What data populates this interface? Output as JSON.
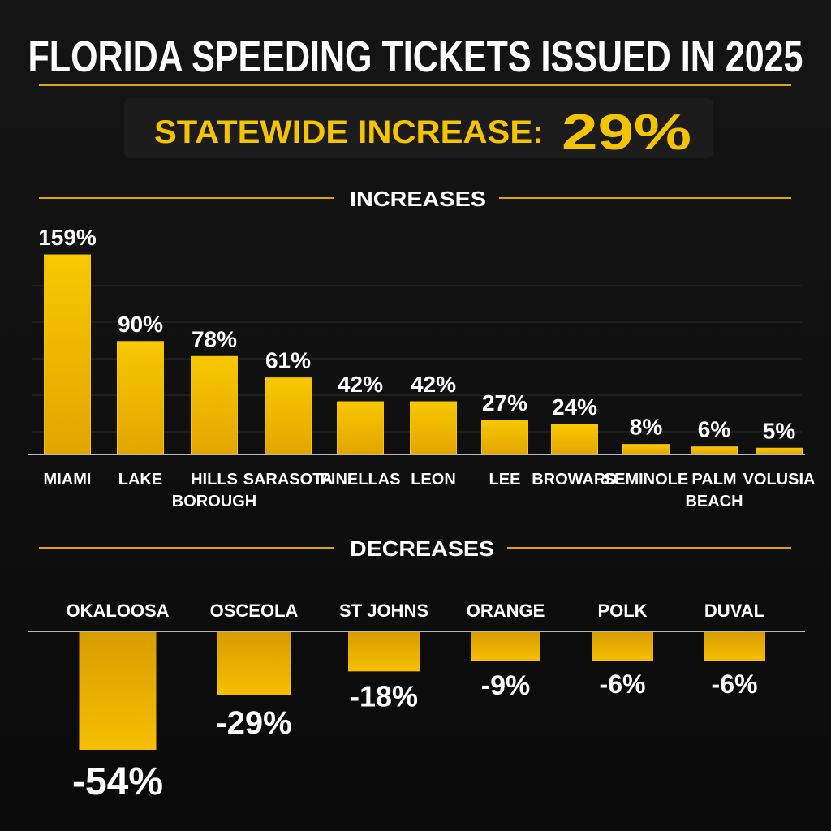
{
  "title": "FLORIDA SPEEDING TICKETS ISSUED IN 2025",
  "statewide": {
    "label": "STATEWIDE INCREASE:",
    "value": "29%"
  },
  "colors": {
    "accent": "#f5c400",
    "bar_top": "#f7c800",
    "bar_bottom": "#e0a200",
    "background": "#0d0d0d",
    "text": "#ffffff"
  },
  "chart_data": [
    {
      "type": "bar",
      "title": "INCREASES",
      "unit": "%",
      "categories": [
        "MIAMI",
        "LAKE",
        "HILLS BOROUGH",
        "SARASOTA",
        "PINELLAS",
        "LEON",
        "LEE",
        "BROWARD",
        "SEMINOLE",
        "PALM BEACH",
        "VOLUSIA"
      ],
      "values": [
        159,
        90,
        78,
        61,
        42,
        42,
        27,
        24,
        8,
        6,
        5
      ],
      "labels": [
        "159%",
        "90%",
        "78%",
        "61%",
        "42%",
        "42%",
        "27%",
        "24%",
        "8%",
        "6%",
        "5%"
      ],
      "ylim": [
        0,
        170
      ],
      "grid": true
    },
    {
      "type": "bar",
      "title": "DECREASES",
      "unit": "%",
      "categories": [
        "OKALOOSA",
        "OSCEOLA",
        "ST JOHNS",
        "ORANGE",
        "POLK",
        "DUVAL"
      ],
      "values": [
        -54,
        -29,
        -18,
        -9,
        -6,
        -6
      ],
      "labels": [
        "-54%",
        "-29%",
        "-18%",
        "-9%",
        "-6%",
        "-6%"
      ],
      "ylim": [
        -60,
        0
      ],
      "grid": false
    }
  ]
}
